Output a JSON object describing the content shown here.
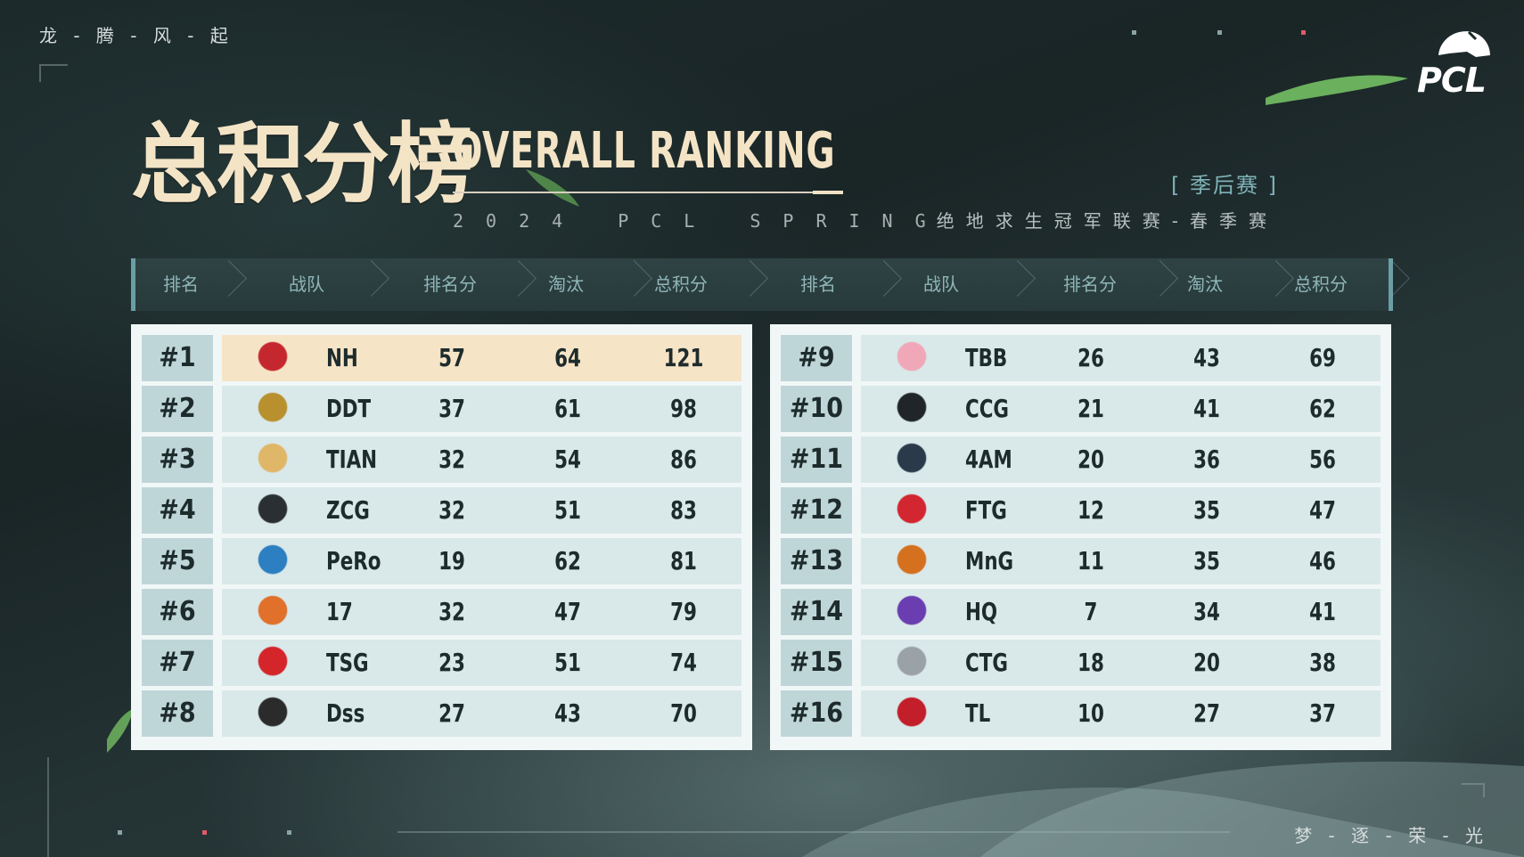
{
  "top_left_slogan": "龙 - 腾 - 风 - 起",
  "bottom_right_slogan": "梦 - 逐 - 荣 - 光",
  "title": {
    "cn": "总积分榜",
    "en": "OVERALL RANKING",
    "sub": "2024 PCL SPRING"
  },
  "season_tag": "[ 季后赛 ]",
  "league_name": "绝地求生冠军联赛-春季赛",
  "brand_logo_text": "PCL",
  "headers": [
    "排名",
    "战队",
    "排名分",
    "淘汰",
    "总积分",
    "排名",
    "战队",
    "排名分",
    "淘汰",
    "总积分"
  ],
  "colors": {
    "accent": "#6a9fa5",
    "title": "#f4e4c6",
    "row_bg": "#d9e8e9",
    "rank_bg": "#bfd6d8",
    "leader_bg": "#f6e4c7"
  },
  "left_rows": [
    {
      "rank": "#1",
      "team": "NH",
      "placement": "57",
      "elims": "64",
      "total": "121",
      "logo_color": "#c4282e"
    },
    {
      "rank": "#2",
      "team": "DDT",
      "placement": "37",
      "elims": "61",
      "total": "98",
      "logo_color": "#b8902e"
    },
    {
      "rank": "#3",
      "team": "TIAN",
      "placement": "32",
      "elims": "54",
      "total": "86",
      "logo_color": "#e0b768"
    },
    {
      "rank": "#4",
      "team": "ZCG",
      "placement": "32",
      "elims": "51",
      "total": "83",
      "logo_color": "#2a2f33"
    },
    {
      "rank": "#5",
      "team": "PeRo",
      "placement": "19",
      "elims": "62",
      "total": "81",
      "logo_color": "#2c7fc0"
    },
    {
      "rank": "#6",
      "team": "17",
      "placement": "32",
      "elims": "47",
      "total": "79",
      "logo_color": "#e0702a"
    },
    {
      "rank": "#7",
      "team": "TSG",
      "placement": "23",
      "elims": "51",
      "total": "74",
      "logo_color": "#d4252b"
    },
    {
      "rank": "#8",
      "team": "Dss",
      "placement": "27",
      "elims": "43",
      "total": "70",
      "logo_color": "#2b2b2b"
    }
  ],
  "right_rows": [
    {
      "rank": "#9",
      "team": "TBB",
      "placement": "26",
      "elims": "43",
      "total": "69",
      "logo_color": "#f0a8b8"
    },
    {
      "rank": "#10",
      "team": "CCG",
      "placement": "21",
      "elims": "41",
      "total": "62",
      "logo_color": "#1f2529"
    },
    {
      "rank": "#11",
      "team": "4AM",
      "placement": "20",
      "elims": "36",
      "total": "56",
      "logo_color": "#2b3a4a"
    },
    {
      "rank": "#12",
      "team": "FTG",
      "placement": "12",
      "elims": "35",
      "total": "47",
      "logo_color": "#d22630"
    },
    {
      "rank": "#13",
      "team": "MnG",
      "placement": "11",
      "elims": "35",
      "total": "46",
      "logo_color": "#d4701e"
    },
    {
      "rank": "#14",
      "team": "HQ",
      "placement": "7",
      "elims": "34",
      "total": "41",
      "logo_color": "#6a3db0"
    },
    {
      "rank": "#15",
      "team": "CTG",
      "placement": "18",
      "elims": "20",
      "total": "38",
      "logo_color": "#9aa2a8"
    },
    {
      "rank": "#16",
      "team": "TL",
      "placement": "10",
      "elims": "27",
      "total": "37",
      "logo_color": "#c21f2a"
    }
  ]
}
